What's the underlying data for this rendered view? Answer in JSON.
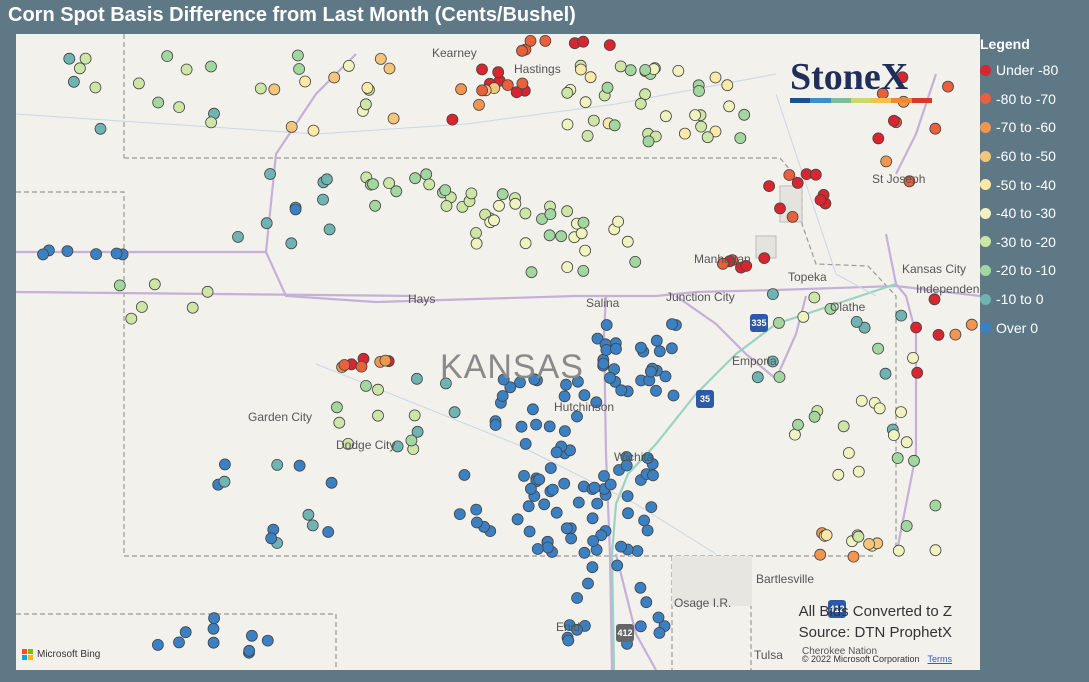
{
  "title": "Corn Spot Basis Difference from Last Month (Cents/Bushel)",
  "legend": {
    "title": "Legend",
    "items": [
      {
        "label": "Under -80",
        "color": "#d7262f"
      },
      {
        "label": "-80 to -70",
        "color": "#e8603c"
      },
      {
        "label": "-70 to -60",
        "color": "#f19650"
      },
      {
        "label": "-60 to -50",
        "color": "#f5c57c"
      },
      {
        "label": "-50 to -40",
        "color": "#fbe9a8"
      },
      {
        "label": "-40 to -30",
        "color": "#f0f3bf"
      },
      {
        "label": "-30 to -20",
        "color": "#cde6a6"
      },
      {
        "label": "-20 to -10",
        "color": "#a3d7a0"
      },
      {
        "label": "-10 to 0",
        "color": "#6fb3b2"
      },
      {
        "label": "Over 0",
        "color": "#3a80c2"
      }
    ]
  },
  "map": {
    "state_label": "KANSAS",
    "places": [
      "Kearney",
      "Hastings",
      "St Joseph",
      "Manhattan",
      "Topeka",
      "Kansas City",
      "Independence",
      "Olathe",
      "Hays",
      "Salina",
      "Junction City",
      "Emporia",
      "Garden City",
      "Dodge City",
      "Hutchinson",
      "Wichita",
      "Bartlesville",
      "Osage I.R.",
      "Enid",
      "Tulsa",
      "Cherokee Nation"
    ],
    "highways": [
      "335",
      "35",
      "412",
      "412"
    ]
  },
  "logo": {
    "text": "StoneX",
    "bar_colors": [
      "#1f4f8f",
      "#3c8fc9",
      "#7dbb9b",
      "#c9d86f",
      "#f4c248",
      "#ea8a3a",
      "#d43b2f"
    ]
  },
  "note": {
    "line1": "All Bids Converted to Z",
    "line2": "Source: DTN ProphetX"
  },
  "attribution": {
    "bing": "Microsoft Bing",
    "copyright": "© 2022 Microsoft Corporation",
    "terms": "Terms"
  }
}
